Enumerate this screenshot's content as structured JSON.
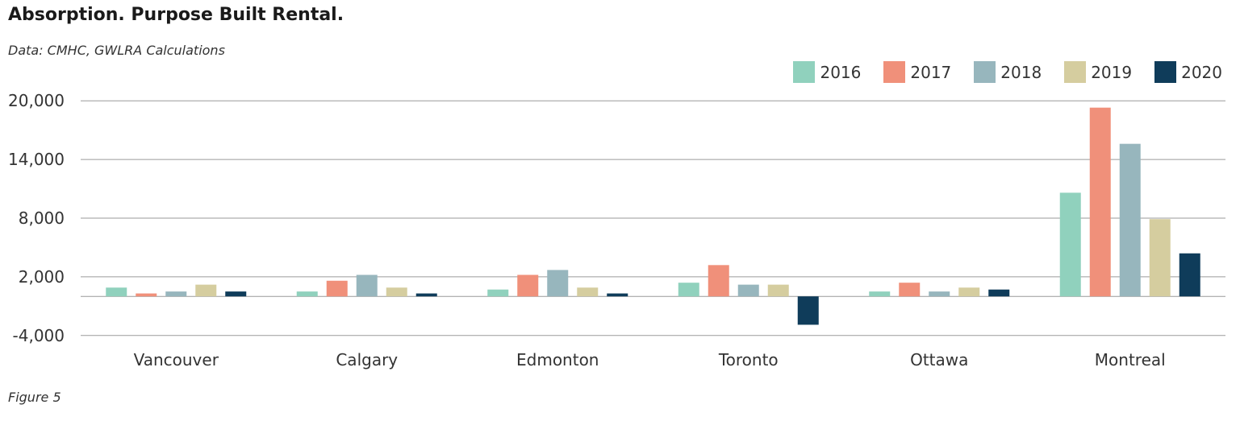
{
  "chart_data": {
    "type": "bar",
    "title": "Absorption. Purpose Built Rental.",
    "subtitle": "Data: CMHC, GWLRA Calculations",
    "caption": "Figure 5",
    "xlabel": "",
    "ylabel": "",
    "categories": [
      "Vancouver",
      "Calgary",
      "Edmonton",
      "Toronto",
      "Ottawa",
      "Montreal"
    ],
    "y_ticks": [
      "20,000",
      "14,000",
      "8,000",
      "2,000",
      "-4,000"
    ],
    "y_tick_values": [
      20000,
      14000,
      8000,
      2000,
      -4000
    ],
    "ylim": [
      -4000,
      20000
    ],
    "grid": true,
    "legend_position": "top-right",
    "series": [
      {
        "name": "2016",
        "color": "#90d1bd",
        "values": [
          900,
          500,
          700,
          1400,
          500,
          10600
        ]
      },
      {
        "name": "2017",
        "color": "#f0907a",
        "values": [
          300,
          1600,
          2200,
          3200,
          1400,
          19300
        ]
      },
      {
        "name": "2018",
        "color": "#97b6bd",
        "values": [
          500,
          2200,
          2700,
          1200,
          500,
          15600
        ]
      },
      {
        "name": "2019",
        "color": "#d5cd9f",
        "values": [
          1200,
          900,
          900,
          1200,
          900,
          7900
        ]
      },
      {
        "name": "2020",
        "color": "#0f3c5a",
        "values": [
          500,
          300,
          300,
          -2900,
          700,
          4400
        ]
      }
    ]
  }
}
